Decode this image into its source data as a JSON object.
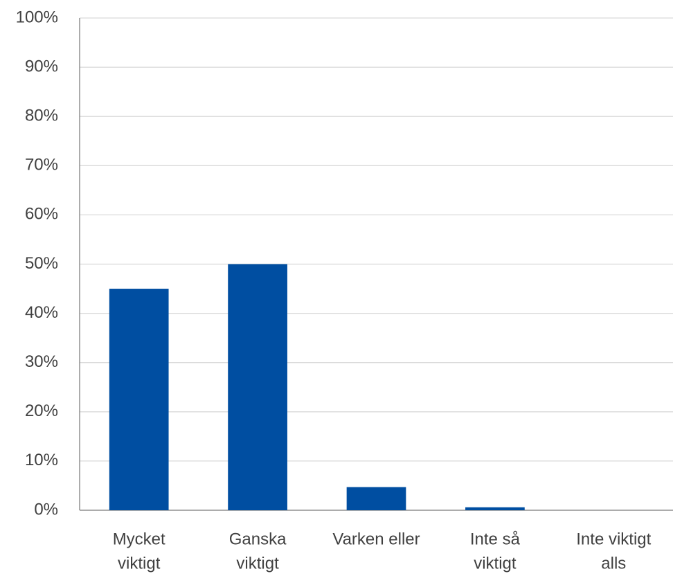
{
  "chart_data": {
    "type": "bar",
    "categories": [
      [
        "Mycket",
        "viktigt"
      ],
      [
        "Ganska",
        "viktigt"
      ],
      [
        "Varken eller"
      ],
      [
        "Inte så",
        "viktigt"
      ],
      [
        "Inte viktigt",
        "alls"
      ]
    ],
    "values": [
      45,
      50,
      4.7,
      0.6,
      0
    ],
    "color": "#004ea1",
    "ylim": [
      0,
      100
    ],
    "yticks": [
      {
        "value": 0,
        "label": "0%"
      },
      {
        "value": 10,
        "label": "10%"
      },
      {
        "value": 20,
        "label": "20%"
      },
      {
        "value": 30,
        "label": "30%"
      },
      {
        "value": 40,
        "label": "40%"
      },
      {
        "value": 50,
        "label": "50%"
      },
      {
        "value": 60,
        "label": "60%"
      },
      {
        "value": 70,
        "label": "70%"
      },
      {
        "value": 80,
        "label": "80%"
      },
      {
        "value": 90,
        "label": "90%"
      },
      {
        "value": 100,
        "label": "100%"
      }
    ],
    "grid": true
  }
}
